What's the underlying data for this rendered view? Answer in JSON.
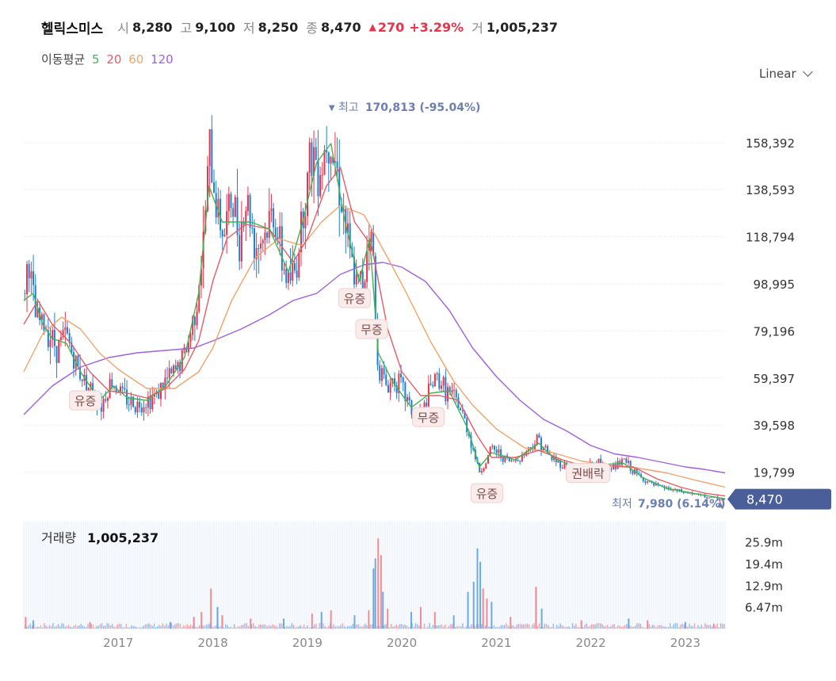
{
  "header": {
    "name": "헬릭스미스",
    "open_label": "시",
    "open": "8,280",
    "high_label": "고",
    "high": "9,100",
    "low_label": "저",
    "low": "8,250",
    "close_label": "종",
    "close": "8,470",
    "change": "270",
    "change_pct": "+3.29%",
    "volume_label": "거",
    "volume": "1,005,237"
  },
  "ma_legend": {
    "label": "이동평균",
    "items": [
      {
        "text": "5",
        "color": "#3fb34f"
      },
      {
        "text": "20",
        "color": "#e85a66"
      },
      {
        "text": "60",
        "color": "#f0a36a"
      },
      {
        "text": "120",
        "color": "#a05fe0"
      }
    ]
  },
  "scale": {
    "label": "Linear"
  },
  "volume_panel": {
    "label": "거래량",
    "value": "1,005,237"
  },
  "colors": {
    "up": "#e8334a",
    "down": "#1e7fd6",
    "price_tag": "#4a5f99",
    "annotation": "#6b7fb0"
  },
  "chart_data": {
    "type": "candlestick",
    "y_ticks": [
      19799,
      39598,
      59397,
      79196,
      98995,
      118794,
      138593,
      158392
    ],
    "y_tick_labels": [
      "19,799",
      "39,598",
      "59,397",
      "79,196",
      "98,995",
      "118,794",
      "138,593",
      "158,392"
    ],
    "ylim": [
      5000,
      175000
    ],
    "x_ticks": [
      "2017",
      "2018",
      "2019",
      "2020",
      "2021",
      "2022",
      "2023"
    ],
    "x_tick_years": [
      2017,
      2018,
      2019,
      2020,
      2021,
      2022,
      2023
    ],
    "xlim": [
      2016.0,
      2023.42
    ],
    "grid": true,
    "legend_position": "top-left",
    "last_price": "8,470",
    "last_price_value": 8470,
    "max_annotation": {
      "label": "최고",
      "value": "170,813 (-95.04%)",
      "x": 2019.26,
      "y": 170813
    },
    "min_annotation": {
      "label": "최저",
      "value": "7,980 (6.14%)",
      "x": 2023.4,
      "y": 7980
    },
    "events": [
      {
        "label": "유증",
        "x": 2016.65,
        "y": 50000
      },
      {
        "label": "유증",
        "x": 2019.5,
        "y": 93000
      },
      {
        "label": "무증",
        "x": 2019.68,
        "y": 80000
      },
      {
        "label": "무증",
        "x": 2020.28,
        "y": 43000
      },
      {
        "label": "유증",
        "x": 2020.9,
        "y": 11000
      },
      {
        "label": "권배락",
        "x": 2021.97,
        "y": 19500
      }
    ],
    "price_path": [
      [
        2016.0,
        95000
      ],
      [
        2016.05,
        110000
      ],
      [
        2016.12,
        85000
      ],
      [
        2016.25,
        80000
      ],
      [
        2016.35,
        72000
      ],
      [
        2016.45,
        78000
      ],
      [
        2016.55,
        65000
      ],
      [
        2016.65,
        58000
      ],
      [
        2016.75,
        52000
      ],
      [
        2016.82,
        48000
      ],
      [
        2016.92,
        58000
      ],
      [
        2017.0,
        55000
      ],
      [
        2017.1,
        50000
      ],
      [
        2017.2,
        48000
      ],
      [
        2017.3,
        50000
      ],
      [
        2017.4,
        52000
      ],
      [
        2017.5,
        58000
      ],
      [
        2017.6,
        62000
      ],
      [
        2017.68,
        68000
      ],
      [
        2017.75,
        75000
      ],
      [
        2017.82,
        90000
      ],
      [
        2017.9,
        115000
      ],
      [
        2017.96,
        155000
      ],
      [
        2018.05,
        130000
      ],
      [
        2018.12,
        120000
      ],
      [
        2018.2,
        135000
      ],
      [
        2018.28,
        120000
      ],
      [
        2018.36,
        135000
      ],
      [
        2018.45,
        115000
      ],
      [
        2018.55,
        120000
      ],
      [
        2018.65,
        130000
      ],
      [
        2018.72,
        110000
      ],
      [
        2018.8,
        100000
      ],
      [
        2018.88,
        105000
      ],
      [
        2018.95,
        130000
      ],
      [
        2019.05,
        155000
      ],
      [
        2019.15,
        148000
      ],
      [
        2019.22,
        165000
      ],
      [
        2019.3,
        150000
      ],
      [
        2019.38,
        130000
      ],
      [
        2019.45,
        110000
      ],
      [
        2019.52,
        98000
      ],
      [
        2019.6,
        100000
      ],
      [
        2019.65,
        125000
      ],
      [
        2019.7,
        110000
      ],
      [
        2019.73,
        70000
      ],
      [
        2019.78,
        62000
      ],
      [
        2019.85,
        55000
      ],
      [
        2019.92,
        60000
      ],
      [
        2020.0,
        55000
      ],
      [
        2020.08,
        48000
      ],
      [
        2020.15,
        42000
      ],
      [
        2020.22,
        45000
      ],
      [
        2020.3,
        55000
      ],
      [
        2020.38,
        60000
      ],
      [
        2020.45,
        55000
      ],
      [
        2020.52,
        52000
      ],
      [
        2020.6,
        48000
      ],
      [
        2020.68,
        40000
      ],
      [
        2020.75,
        30000
      ],
      [
        2020.82,
        20000
      ],
      [
        2020.88,
        23000
      ],
      [
        2020.95,
        30000
      ],
      [
        2021.05,
        27000
      ],
      [
        2021.15,
        24000
      ],
      [
        2021.25,
        26000
      ],
      [
        2021.35,
        30000
      ],
      [
        2021.45,
        34000
      ],
      [
        2021.55,
        27000
      ],
      [
        2021.65,
        24000
      ],
      [
        2021.75,
        22000
      ],
      [
        2021.85,
        21000
      ],
      [
        2021.95,
        22000
      ],
      [
        2022.05,
        24000
      ],
      [
        2022.15,
        22000
      ],
      [
        2022.25,
        22000
      ],
      [
        2022.35,
        25000
      ],
      [
        2022.45,
        20000
      ],
      [
        2022.55,
        17000
      ],
      [
        2022.65,
        14500
      ],
      [
        2022.75,
        13500
      ],
      [
        2022.85,
        12500
      ],
      [
        2022.95,
        11500
      ],
      [
        2023.05,
        11000
      ],
      [
        2023.15,
        10000
      ],
      [
        2023.25,
        9200
      ],
      [
        2023.35,
        8500
      ],
      [
        2023.42,
        8470
      ]
    ],
    "ma5_path": [
      [
        2016.0,
        92000
      ],
      [
        2016.1,
        95000
      ],
      [
        2016.2,
        82000
      ],
      [
        2016.3,
        76000
      ],
      [
        2016.45,
        74000
      ],
      [
        2016.6,
        62000
      ],
      [
        2016.8,
        50000
      ],
      [
        2016.95,
        56000
      ],
      [
        2017.1,
        51000
      ],
      [
        2017.3,
        50000
      ],
      [
        2017.5,
        56000
      ],
      [
        2017.7,
        68000
      ],
      [
        2017.85,
        95000
      ],
      [
        2017.96,
        140000
      ],
      [
        2018.1,
        125000
      ],
      [
        2018.25,
        125000
      ],
      [
        2018.4,
        125000
      ],
      [
        2018.6,
        122000
      ],
      [
        2018.8,
        104000
      ],
      [
        2018.95,
        125000
      ],
      [
        2019.1,
        150000
      ],
      [
        2019.25,
        158000
      ],
      [
        2019.4,
        125000
      ],
      [
        2019.55,
        100000
      ],
      [
        2019.66,
        118000
      ],
      [
        2019.75,
        70000
      ],
      [
        2019.9,
        58000
      ],
      [
        2020.1,
        47000
      ],
      [
        2020.3,
        53000
      ],
      [
        2020.5,
        54000
      ],
      [
        2020.7,
        38000
      ],
      [
        2020.82,
        22000
      ],
      [
        2020.95,
        28000
      ],
      [
        2021.2,
        25000
      ],
      [
        2021.45,
        32000
      ],
      [
        2021.6,
        26000
      ],
      [
        2021.85,
        21500
      ],
      [
        2022.1,
        23000
      ],
      [
        2022.35,
        23500
      ],
      [
        2022.55,
        17500
      ],
      [
        2022.8,
        13000
      ],
      [
        2023.1,
        10800
      ],
      [
        2023.42,
        8600
      ]
    ],
    "ma20_path": [
      [
        2016.0,
        82000
      ],
      [
        2016.15,
        92000
      ],
      [
        2016.3,
        82000
      ],
      [
        2016.5,
        74000
      ],
      [
        2016.7,
        62000
      ],
      [
        2016.9,
        54000
      ],
      [
        2017.1,
        53000
      ],
      [
        2017.3,
        51000
      ],
      [
        2017.5,
        55000
      ],
      [
        2017.7,
        63000
      ],
      [
        2017.85,
        75000
      ],
      [
        2018.0,
        100000
      ],
      [
        2018.15,
        118000
      ],
      [
        2018.35,
        124000
      ],
      [
        2018.6,
        122000
      ],
      [
        2018.85,
        108000
      ],
      [
        2019.0,
        118000
      ],
      [
        2019.2,
        140000
      ],
      [
        2019.35,
        148000
      ],
      [
        2019.5,
        125000
      ],
      [
        2019.68,
        115000
      ],
      [
        2019.85,
        80000
      ],
      [
        2020.0,
        62000
      ],
      [
        2020.2,
        52000
      ],
      [
        2020.4,
        52000
      ],
      [
        2020.6,
        50000
      ],
      [
        2020.8,
        35000
      ],
      [
        2020.95,
        26000
      ],
      [
        2021.2,
        26000
      ],
      [
        2021.45,
        29000
      ],
      [
        2021.7,
        25000
      ],
      [
        2021.95,
        22000
      ],
      [
        2022.2,
        22500
      ],
      [
        2022.45,
        22000
      ],
      [
        2022.7,
        17000
      ],
      [
        2022.95,
        13500
      ],
      [
        2023.2,
        11000
      ],
      [
        2023.42,
        9800
      ]
    ],
    "ma60_path": [
      [
        2016.0,
        62000
      ],
      [
        2016.2,
        78000
      ],
      [
        2016.4,
        85000
      ],
      [
        2016.6,
        80000
      ],
      [
        2016.8,
        70000
      ],
      [
        2017.0,
        63000
      ],
      [
        2017.3,
        55000
      ],
      [
        2017.6,
        55000
      ],
      [
        2017.85,
        62000
      ],
      [
        2018.0,
        72000
      ],
      [
        2018.2,
        92000
      ],
      [
        2018.45,
        110000
      ],
      [
        2018.7,
        118000
      ],
      [
        2018.95,
        115000
      ],
      [
        2019.15,
        125000
      ],
      [
        2019.35,
        132000
      ],
      [
        2019.6,
        128000
      ],
      [
        2019.85,
        110000
      ],
      [
        2020.05,
        95000
      ],
      [
        2020.3,
        75000
      ],
      [
        2020.55,
        58000
      ],
      [
        2020.75,
        48000
      ],
      [
        2021.0,
        38000
      ],
      [
        2021.3,
        30000
      ],
      [
        2021.6,
        28000
      ],
      [
        2021.9,
        24500
      ],
      [
        2022.2,
        22500
      ],
      [
        2022.5,
        21500
      ],
      [
        2022.8,
        19500
      ],
      [
        2023.1,
        16500
      ],
      [
        2023.42,
        13500
      ]
    ],
    "ma120_path": [
      [
        2016.0,
        44000
      ],
      [
        2016.3,
        56000
      ],
      [
        2016.6,
        64000
      ],
      [
        2016.9,
        68000
      ],
      [
        2017.2,
        70000
      ],
      [
        2017.5,
        71000
      ],
      [
        2017.8,
        72000
      ],
      [
        2018.0,
        75000
      ],
      [
        2018.3,
        80000
      ],
      [
        2018.6,
        86000
      ],
      [
        2018.85,
        92000
      ],
      [
        2019.1,
        95000
      ],
      [
        2019.35,
        103000
      ],
      [
        2019.6,
        107000
      ],
      [
        2019.8,
        108000
      ],
      [
        2020.0,
        106000
      ],
      [
        2020.25,
        100000
      ],
      [
        2020.5,
        88000
      ],
      [
        2020.75,
        72000
      ],
      [
        2021.0,
        60000
      ],
      [
        2021.25,
        50000
      ],
      [
        2021.5,
        42000
      ],
      [
        2021.75,
        37000
      ],
      [
        2022.0,
        31000
      ],
      [
        2022.25,
        27500
      ],
      [
        2022.5,
        26000
      ],
      [
        2022.75,
        24000
      ],
      [
        2023.0,
        22000
      ],
      [
        2023.2,
        21000
      ],
      [
        2023.42,
        19500
      ]
    ],
    "volume": {
      "y_tick_labels": [
        "6.47m",
        "12.9m",
        "19.4m",
        "25.9m"
      ],
      "y_ticks": [
        6.47,
        12.9,
        19.4,
        25.9
      ],
      "ylim": [
        0,
        32
      ],
      "spikes": [
        {
          "x": 2016.02,
          "v": 3.5,
          "up": true
        },
        {
          "x": 2016.1,
          "v": 2.5,
          "up": false
        },
        {
          "x": 2016.7,
          "v": 2.0,
          "up": true
        },
        {
          "x": 2017.55,
          "v": 2.0,
          "up": false
        },
        {
          "x": 2017.8,
          "v": 3.5,
          "up": true
        },
        {
          "x": 2017.88,
          "v": 5.0,
          "up": true
        },
        {
          "x": 2017.98,
          "v": 12.0,
          "up": true
        },
        {
          "x": 2018.05,
          "v": 6.5,
          "up": false
        },
        {
          "x": 2018.1,
          "v": 4.0,
          "up": true
        },
        {
          "x": 2018.4,
          "v": 3.0,
          "up": true
        },
        {
          "x": 2018.75,
          "v": 3.0,
          "up": false
        },
        {
          "x": 2019.05,
          "v": 4.5,
          "up": true
        },
        {
          "x": 2019.15,
          "v": 5.0,
          "up": false
        },
        {
          "x": 2019.25,
          "v": 5.5,
          "up": true
        },
        {
          "x": 2019.5,
          "v": 4.0,
          "up": false
        },
        {
          "x": 2019.65,
          "v": 5.5,
          "up": true
        },
        {
          "x": 2019.7,
          "v": 18.0,
          "up": false
        },
        {
          "x": 2019.72,
          "v": 21.0,
          "up": false
        },
        {
          "x": 2019.75,
          "v": 27.0,
          "up": true
        },
        {
          "x": 2019.78,
          "v": 22.0,
          "up": true
        },
        {
          "x": 2019.8,
          "v": 11.0,
          "up": false
        },
        {
          "x": 2019.85,
          "v": 6.0,
          "up": true
        },
        {
          "x": 2020.1,
          "v": 5.0,
          "up": false
        },
        {
          "x": 2020.2,
          "v": 6.5,
          "up": true
        },
        {
          "x": 2020.35,
          "v": 5.0,
          "up": true
        },
        {
          "x": 2020.55,
          "v": 4.0,
          "up": false
        },
        {
          "x": 2020.7,
          "v": 11.0,
          "up": false
        },
        {
          "x": 2020.76,
          "v": 14.0,
          "up": false
        },
        {
          "x": 2020.8,
          "v": 24.0,
          "up": false
        },
        {
          "x": 2020.83,
          "v": 20.0,
          "up": false
        },
        {
          "x": 2020.86,
          "v": 12.0,
          "up": true
        },
        {
          "x": 2020.9,
          "v": 9.0,
          "up": true
        },
        {
          "x": 2020.95,
          "v": 8.0,
          "up": false
        },
        {
          "x": 2021.15,
          "v": 3.5,
          "up": true
        },
        {
          "x": 2021.42,
          "v": 12.5,
          "up": true
        },
        {
          "x": 2021.48,
          "v": 6.0,
          "up": false
        },
        {
          "x": 2021.9,
          "v": 2.5,
          "up": true
        },
        {
          "x": 2022.4,
          "v": 3.0,
          "up": false
        },
        {
          "x": 2022.6,
          "v": 2.5,
          "up": true
        },
        {
          "x": 2023.0,
          "v": 2.0,
          "up": false
        },
        {
          "x": 2023.3,
          "v": 1.5,
          "up": true
        }
      ]
    }
  }
}
